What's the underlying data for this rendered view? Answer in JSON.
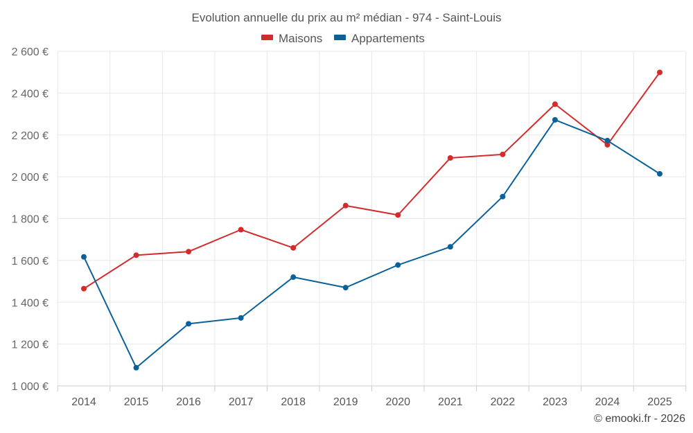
{
  "chart_data": {
    "type": "line",
    "title": "Evolution annuelle du prix au m² médian - 974 - Saint-Louis",
    "categories": [
      "2014",
      "2015",
      "2016",
      "2017",
      "2018",
      "2019",
      "2020",
      "2021",
      "2022",
      "2023",
      "2024",
      "2025"
    ],
    "series": [
      {
        "name": "Maisons",
        "color": "#d42a2a",
        "values": [
          1465,
          1625,
          1642,
          1747,
          1660,
          1862,
          1817,
          2090,
          2107,
          2347,
          2153,
          2499
        ]
      },
      {
        "name": "Appartements",
        "color": "#0a6199",
        "values": [
          1617,
          1087,
          1297,
          1325,
          1520,
          1470,
          1578,
          1665,
          1905,
          2272,
          2173,
          2014
        ]
      }
    ],
    "ylim": [
      1000,
      2600
    ],
    "yticks": [
      1000,
      1200,
      1400,
      1600,
      1800,
      2000,
      2200,
      2400,
      2600
    ],
    "ytick_labels": [
      "1 000 €",
      "1 200 €",
      "1 400 €",
      "1 600 €",
      "1 800 €",
      "2 000 €",
      "2 200 €",
      "2 400 €",
      "2 600 €"
    ],
    "xlabel": "",
    "ylabel": "",
    "grid": true,
    "legend_position": "top-center"
  },
  "credit": "© emooki.fr - 2026"
}
